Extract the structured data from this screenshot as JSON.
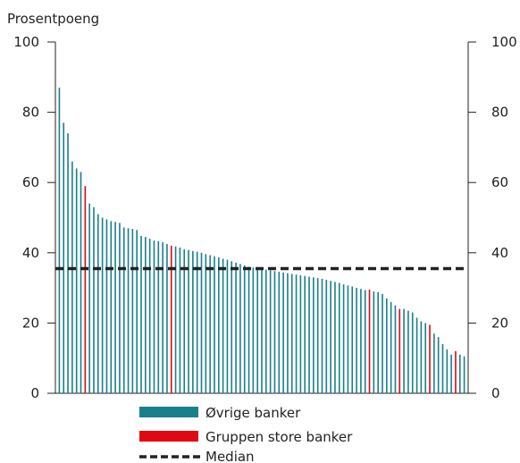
{
  "chart_data": {
    "type": "bar",
    "unit_label": "Prosentpoeng",
    "ylim": [
      0,
      100
    ],
    "yticks": [
      0,
      20,
      40,
      60,
      80,
      100
    ],
    "right_axis": true,
    "grid": false,
    "legend_position": "bottom",
    "series": [
      {
        "name": "Øvrige banker",
        "color": "#1a7f8a",
        "values": [
          87,
          77,
          74,
          66,
          64,
          63,
          null,
          54,
          53,
          51,
          50,
          49.5,
          49,
          48.8,
          48.5,
          47.2,
          47,
          46.8,
          46.5,
          44.8,
          44.5,
          44,
          43.5,
          43.3,
          43,
          42.5,
          null,
          41.8,
          41.5,
          41,
          40.8,
          40.5,
          40.3,
          40,
          39.6,
          39.3,
          39,
          38.7,
          38.3,
          38,
          37.6,
          37.2,
          36.8,
          36.4,
          36,
          35.8,
          35.6,
          35.4,
          35.2,
          35,
          34.8,
          34.6,
          34.4,
          34.2,
          34,
          33.8,
          33.6,
          33.4,
          33.2,
          33,
          32.8,
          32.6,
          32.3,
          32,
          31.7,
          31.4,
          31,
          30.7,
          30.4,
          30,
          29.7,
          29.4,
          null,
          29,
          28.8,
          28.3,
          27,
          26,
          25,
          null,
          24,
          23.5,
          23,
          21.5,
          20.5,
          20,
          null,
          17,
          16,
          14,
          12.5,
          11,
          null,
          11,
          10.5
        ],
        "highlight": [
          null,
          null,
          null,
          null,
          null,
          null,
          59,
          null,
          null,
          null,
          null,
          null,
          null,
          null,
          null,
          null,
          null,
          null,
          null,
          null,
          null,
          null,
          null,
          null,
          null,
          null,
          42,
          null,
          null,
          null,
          null,
          null,
          null,
          null,
          null,
          null,
          null,
          null,
          null,
          null,
          null,
          null,
          null,
          null,
          null,
          null,
          null,
          null,
          null,
          null,
          null,
          null,
          null,
          null,
          null,
          null,
          null,
          null,
          null,
          null,
          null,
          null,
          null,
          null,
          null,
          null,
          null,
          null,
          null,
          null,
          null,
          null,
          29.5,
          null,
          null,
          null,
          null,
          null,
          null,
          24,
          null,
          null,
          null,
          null,
          null,
          null,
          19.5,
          null,
          null,
          null,
          null,
          null,
          12,
          null,
          null
        ]
      },
      {
        "name": "Gruppen store banker",
        "color": "#e30613"
      },
      {
        "name": "Median",
        "color": "#222222",
        "value": 35.5
      }
    ]
  }
}
